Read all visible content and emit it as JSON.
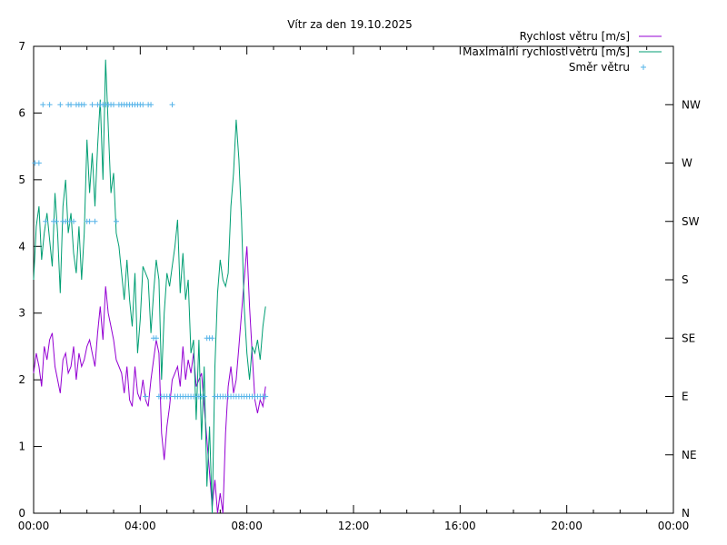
{
  "chart_data": {
    "type": "line",
    "title": "Vítr za den 19.10.2025",
    "legend_position": "top-right",
    "grid": false,
    "x_range_hours": [
      0,
      24
    ],
    "x_ticks": [
      {
        "h": 0,
        "label": "00:00"
      },
      {
        "h": 4,
        "label": "04:00"
      },
      {
        "h": 8,
        "label": "08:00"
      },
      {
        "h": 12,
        "label": "12:00"
      },
      {
        "h": 16,
        "label": "16:00"
      },
      {
        "h": 20,
        "label": "20:00"
      },
      {
        "h": 24,
        "label": "00:00"
      }
    ],
    "y_range": [
      0,
      7
    ],
    "y_ticks": [
      "0",
      "1",
      "2",
      "3",
      "4",
      "5",
      "6",
      "7"
    ],
    "y2_range": [
      0,
      7
    ],
    "y2_ticks": [
      {
        "v": 0,
        "label": "N"
      },
      {
        "v": 0.875,
        "label": "NE"
      },
      {
        "v": 1.75,
        "label": "E"
      },
      {
        "v": 2.625,
        "label": "SE"
      },
      {
        "v": 3.5,
        "label": "S"
      },
      {
        "v": 4.375,
        "label": "SW"
      },
      {
        "v": 5.25,
        "label": "W"
      },
      {
        "v": 6.125,
        "label": "NW"
      }
    ],
    "series": [
      {
        "name": "Rychlost větru [m/s]",
        "color": "#9400d3",
        "style": "line",
        "x": [
          0,
          0.1,
          0.2,
          0.3,
          0.4,
          0.5,
          0.6,
          0.7,
          0.8,
          0.9,
          1.0,
          1.1,
          1.2,
          1.3,
          1.4,
          1.5,
          1.6,
          1.7,
          1.8,
          1.9,
          2.0,
          2.1,
          2.2,
          2.3,
          2.4,
          2.5,
          2.6,
          2.7,
          2.8,
          2.9,
          3.0,
          3.1,
          3.2,
          3.3,
          3.4,
          3.5,
          3.6,
          3.7,
          3.8,
          3.9,
          4.0,
          4.1,
          4.2,
          4.3,
          4.4,
          4.5,
          4.6,
          4.7,
          4.8,
          4.9,
          5.0,
          5.1,
          5.2,
          5.3,
          5.4,
          5.5,
          5.6,
          5.7,
          5.8,
          5.9,
          6.0,
          6.1,
          6.2,
          6.3,
          6.4,
          6.5,
          6.6,
          6.7,
          6.8,
          6.9,
          7.0,
          7.1,
          7.2,
          7.3,
          7.4,
          7.5,
          7.6,
          7.7,
          7.8,
          7.9,
          8.0,
          8.1,
          8.2,
          8.3,
          8.4,
          8.5,
          8.6,
          8.7
        ],
        "y": [
          2.1,
          2.4,
          2.2,
          1.9,
          2.5,
          2.3,
          2.6,
          2.7,
          2.2,
          2.0,
          1.8,
          2.3,
          2.4,
          2.1,
          2.2,
          2.5,
          2.0,
          2.4,
          2.2,
          2.3,
          2.5,
          2.6,
          2.4,
          2.2,
          2.7,
          3.1,
          2.6,
          3.4,
          3.0,
          2.8,
          2.6,
          2.3,
          2.2,
          2.1,
          1.8,
          2.2,
          1.7,
          1.6,
          2.2,
          1.8,
          1.7,
          2.0,
          1.7,
          1.6,
          2.0,
          2.3,
          2.6,
          2.4,
          1.2,
          0.8,
          1.3,
          1.6,
          2.0,
          2.1,
          2.2,
          1.9,
          2.5,
          2.0,
          2.3,
          2.1,
          2.4,
          1.9,
          2.0,
          2.1,
          1.6,
          1.1,
          0.6,
          0.1,
          0.5,
          0.0,
          0.3,
          0.0,
          1.2,
          1.9,
          2.2,
          1.8,
          2.0,
          2.5,
          3.0,
          3.5,
          4.0,
          3.1,
          2.4,
          1.7,
          1.5,
          1.7,
          1.6,
          1.9
        ]
      },
      {
        "name": "Maximální rychlost větru [m/s]",
        "color": "#009e73",
        "style": "line",
        "x": [
          0,
          0.1,
          0.2,
          0.3,
          0.4,
          0.5,
          0.6,
          0.7,
          0.8,
          0.9,
          1.0,
          1.1,
          1.2,
          1.3,
          1.4,
          1.5,
          1.6,
          1.7,
          1.8,
          1.9,
          2.0,
          2.1,
          2.2,
          2.3,
          2.4,
          2.5,
          2.6,
          2.7,
          2.8,
          2.9,
          3.0,
          3.1,
          3.2,
          3.3,
          3.4,
          3.5,
          3.6,
          3.7,
          3.8,
          3.9,
          4.0,
          4.1,
          4.2,
          4.3,
          4.4,
          4.5,
          4.6,
          4.7,
          4.8,
          4.9,
          5.0,
          5.1,
          5.2,
          5.3,
          5.4,
          5.5,
          5.6,
          5.7,
          5.8,
          5.9,
          6.0,
          6.1,
          6.2,
          6.3,
          6.4,
          6.5,
          6.6,
          6.7,
          6.8,
          6.9,
          7.0,
          7.1,
          7.2,
          7.3,
          7.4,
          7.5,
          7.6,
          7.7,
          7.8,
          7.9,
          8.0,
          8.1,
          8.2,
          8.3,
          8.4,
          8.5,
          8.6,
          8.7
        ],
        "y": [
          3.5,
          4.3,
          4.6,
          3.8,
          4.2,
          4.5,
          4.1,
          3.7,
          4.8,
          4.2,
          3.3,
          4.6,
          5.0,
          4.2,
          4.5,
          3.9,
          3.6,
          4.3,
          3.5,
          4.2,
          5.6,
          4.8,
          5.4,
          4.6,
          5.5,
          6.2,
          5.0,
          6.8,
          5.8,
          4.8,
          5.1,
          4.2,
          4.0,
          3.6,
          3.2,
          3.8,
          3.2,
          2.8,
          3.6,
          2.4,
          2.9,
          3.7,
          3.6,
          3.5,
          2.7,
          3.3,
          3.8,
          3.5,
          2.0,
          3.0,
          3.6,
          3.4,
          3.7,
          4.0,
          4.4,
          3.3,
          3.9,
          3.2,
          3.5,
          2.4,
          2.6,
          1.4,
          2.6,
          1.1,
          2.2,
          0.4,
          1.3,
          0.0,
          2.2,
          3.3,
          3.8,
          3.5,
          3.4,
          3.6,
          4.6,
          5.1,
          5.9,
          5.3,
          4.4,
          3.1,
          2.4,
          2.0,
          2.5,
          2.4,
          2.6,
          2.3,
          2.8,
          3.1
        ]
      },
      {
        "name": "Směr větru",
        "color": "#56b4e9",
        "style": "points",
        "axis": "y2",
        "x": [
          0.05,
          0.2,
          0.35,
          0.45,
          0.6,
          0.75,
          0.85,
          1.0,
          1.1,
          1.2,
          1.3,
          1.35,
          1.4,
          1.5,
          1.6,
          1.7,
          1.8,
          1.9,
          2.0,
          2.1,
          2.2,
          2.3,
          2.4,
          2.5,
          2.6,
          2.7,
          2.8,
          2.9,
          3.0,
          3.1,
          3.2,
          3.3,
          3.4,
          3.5,
          3.6,
          3.7,
          3.8,
          3.9,
          4.0,
          4.1,
          4.2,
          4.3,
          4.4,
          4.5,
          4.6,
          4.7,
          4.8,
          4.9,
          5.0,
          5.1,
          5.2,
          5.3,
          5.4,
          5.5,
          5.6,
          5.7,
          5.8,
          5.9,
          6.0,
          6.1,
          6.2,
          6.3,
          6.4,
          6.5,
          6.6,
          6.7,
          6.8,
          6.9,
          7.0,
          7.1,
          7.2,
          7.3,
          7.4,
          7.5,
          7.6,
          7.7,
          7.8,
          7.9,
          8.0,
          8.1,
          8.2,
          8.3,
          8.4,
          8.5,
          8.6,
          8.7
        ],
        "y": [
          5.25,
          5.25,
          6.125,
          4.375,
          6.125,
          4.375,
          4.375,
          6.125,
          4.375,
          4.375,
          6.125,
          4.375,
          6.125,
          4.375,
          6.125,
          6.125,
          6.125,
          6.125,
          4.375,
          4.375,
          6.125,
          4.375,
          6.125,
          6.125,
          6.125,
          6.125,
          6.125,
          6.125,
          6.125,
          4.375,
          6.125,
          6.125,
          6.125,
          6.125,
          6.125,
          6.125,
          6.125,
          6.125,
          6.125,
          6.125,
          1.75,
          6.125,
          6.125,
          2.625,
          2.625,
          1.75,
          1.75,
          1.75,
          1.75,
          1.75,
          6.125,
          1.75,
          1.75,
          1.75,
          1.75,
          1.75,
          1.75,
          1.75,
          1.75,
          1.75,
          1.75,
          1.75,
          1.75,
          2.625,
          2.625,
          2.625,
          1.75,
          1.75,
          1.75,
          1.75,
          1.75,
          1.75,
          1.75,
          1.75,
          1.75,
          1.75,
          1.75,
          1.75,
          1.75,
          1.75,
          1.75,
          1.75,
          1.75,
          1.75,
          1.75,
          1.75
        ]
      }
    ]
  }
}
